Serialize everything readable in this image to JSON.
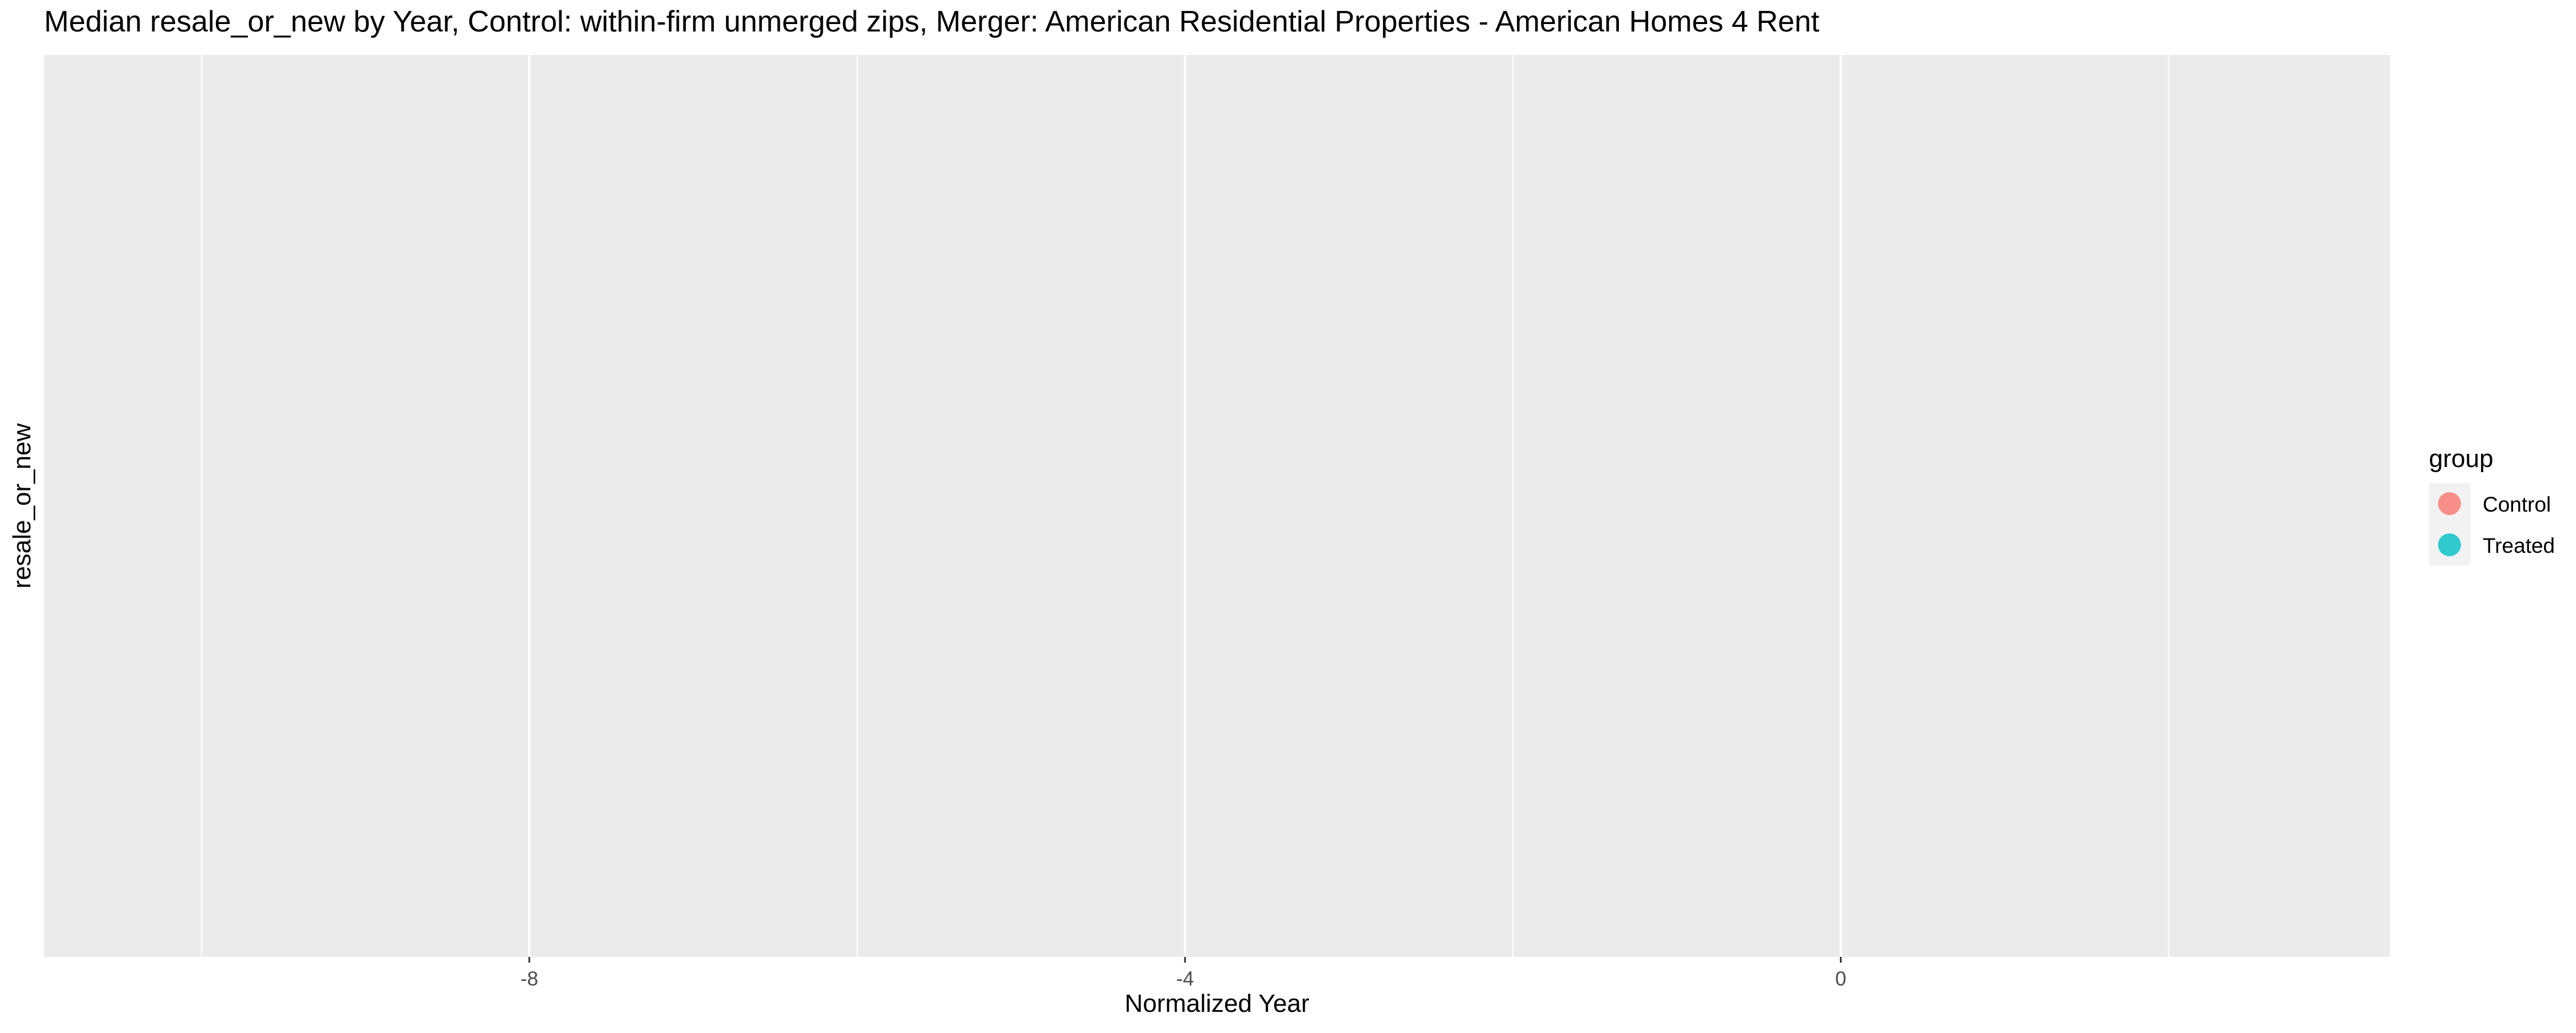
{
  "chart_data": {
    "type": "scatter",
    "title": "Median resale_or_new by Year, Control: within-firm unmerged zips, Merger: American Residential Properties - American Homes 4 Rent",
    "xlabel": "Normalized Year",
    "ylabel": "resale_or_new",
    "xlim": [
      -10.96,
      3.35
    ],
    "x_ticks": [
      -8,
      -4,
      0
    ],
    "x_tick_labels": [
      "-8",
      "-4",
      "0"
    ],
    "x_minor_gridlines": [
      -10,
      -6,
      -2,
      2
    ],
    "y_ticks": [],
    "grid": true,
    "legend": {
      "title": "group",
      "position": "right",
      "entries": [
        {
          "label": "Control",
          "color": "#F8766D"
        },
        {
          "label": "Treated",
          "color": "#00BFC4"
        }
      ]
    },
    "series": [
      {
        "name": "Control",
        "color": "#F8766D",
        "x": [],
        "y": []
      },
      {
        "name": "Treated",
        "color": "#00BFC4",
        "x": [],
        "y": []
      }
    ]
  },
  "colors": {
    "panel_background": "#EBEBEB",
    "gridline": "#FFFFFF",
    "legend_key_background": "#F2F2F2",
    "axis_text": "#4D4D4D",
    "title_text": "#000000"
  }
}
